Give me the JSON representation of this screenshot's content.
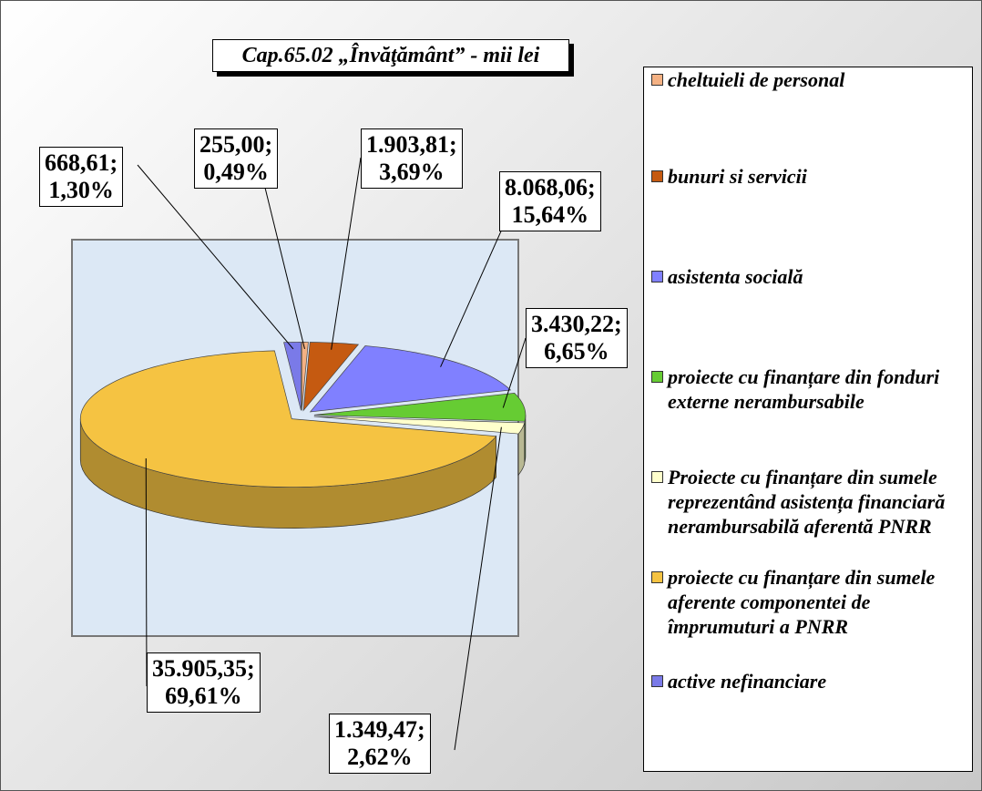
{
  "chart_data": {
    "type": "pie",
    "title": "Cap.65.02 „Învăţământ” - mii lei",
    "categories": [
      "cheltuieli de personal",
      "bunuri si servicii",
      "asistenta socială",
      "proiecte cu finanțare din fonduri externe nerambursabile",
      "Proiecte cu finanțare din sumele reprezentând asistența financiară nerambursabilă aferentă PNRR",
      "proiecte cu finanțare din sumele aferente componentei de împrumuturi a PNRR",
      "active nefinanciare"
    ],
    "values": [
      255,
      1903.81,
      8068.06,
      3430.22,
      1349.47,
      35905.35,
      668.61
    ],
    "value_labels": [
      "255,00; 0,49%",
      "1.903,81; 3,69%",
      "8.068,06; 15,64%",
      "3.430,22; 6,65%",
      "1.349,47; 2,62%",
      "35.905,35; 69,61%",
      "668,61; 1,30%"
    ],
    "colors": [
      "#f4b183",
      "#c55a11",
      "#8080ff",
      "#66cc33",
      "#ffffcc",
      "#f5c342",
      "#7a7ae8"
    ],
    "legend": "right"
  }
}
